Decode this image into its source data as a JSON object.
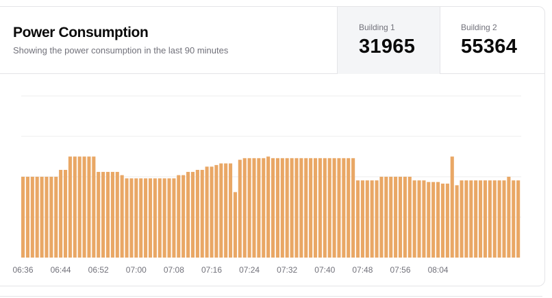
{
  "header": {
    "title": "Power Consumption",
    "subtitle": "Showing the power consumption in the last 90 minutes"
  },
  "stats": [
    {
      "label": "Building 1",
      "value": "31965",
      "active": true
    },
    {
      "label": "Building 2",
      "value": "55364",
      "active": false
    }
  ],
  "chart_data": {
    "type": "bar",
    "title": "Power Consumption",
    "series": [
      {
        "name": "Building 1",
        "color": "#e9a765",
        "values": [
          200,
          200,
          200,
          200,
          200,
          200,
          200,
          200,
          217,
          217,
          250,
          250,
          250,
          250,
          250,
          250,
          212,
          212,
          212,
          212,
          212,
          204,
          196,
          196,
          196,
          196,
          196,
          196,
          196,
          196,
          196,
          196,
          196,
          204,
          204,
          212,
          212,
          217,
          217,
          225,
          225,
          229,
          233,
          233,
          233,
          162,
          242,
          246,
          246,
          246,
          246,
          246,
          250,
          246,
          246,
          246,
          246,
          246,
          246,
          246,
          246,
          246,
          246,
          246,
          246,
          246,
          246,
          246,
          246,
          246,
          246,
          191,
          191,
          191,
          191,
          191,
          200,
          200,
          200,
          200,
          200,
          200,
          200,
          191,
          191,
          191,
          187,
          187,
          187,
          183,
          183,
          250,
          179,
          191,
          191,
          191,
          191,
          191,
          191,
          191,
          191,
          191,
          191,
          200,
          191,
          191
        ]
      }
    ],
    "x_start": "06:36",
    "x_step_minutes": 1,
    "tick_labels": [
      "06:36",
      "06:44",
      "06:52",
      "07:00",
      "07:08",
      "07:16",
      "07:24",
      "07:32",
      "07:40",
      "07:48",
      "07:56",
      "08:04"
    ],
    "ylim": [
      0,
      400
    ],
    "grid": true,
    "xlabel": "",
    "ylabel": ""
  }
}
